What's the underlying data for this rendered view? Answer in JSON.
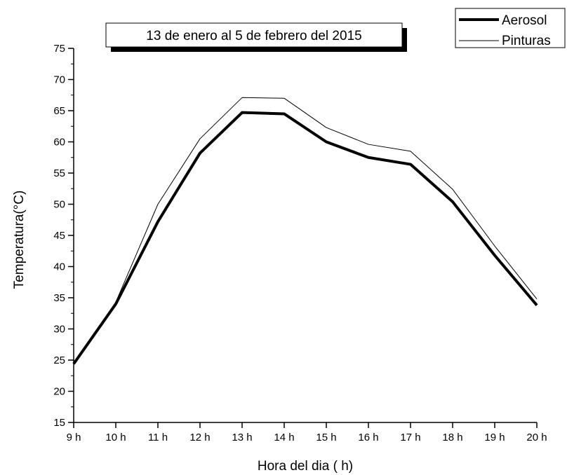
{
  "chart_data": {
    "type": "line",
    "title": "13 de enero al 5 de febrero del 2015",
    "xlabel": "Hora del dia ( h)",
    "ylabel": "Temperatura(°C)",
    "categories": [
      "9 h",
      "10 h",
      "11 h",
      "12 h",
      "13 h",
      "14 h",
      "15 h",
      "16 h",
      "17 h",
      "18 h",
      "19 h",
      "20 h"
    ],
    "ylim": [
      15,
      75
    ],
    "yticks": [
      15,
      20,
      25,
      30,
      35,
      40,
      45,
      50,
      55,
      60,
      65,
      70,
      75
    ],
    "grid": false,
    "legend_position": "top-right",
    "series": [
      {
        "name": "Aerosol",
        "line_style": "thick",
        "values": [
          24.4,
          34.0,
          47.2,
          58.2,
          64.7,
          64.5,
          60.0,
          57.5,
          56.4,
          50.4,
          41.8,
          33.8
        ]
      },
      {
        "name": "Pinturas",
        "line_style": "thin",
        "values": [
          24.4,
          34.3,
          50.0,
          60.5,
          67.1,
          67.0,
          62.3,
          59.6,
          58.5,
          52.4,
          43.3,
          34.8
        ]
      }
    ]
  }
}
